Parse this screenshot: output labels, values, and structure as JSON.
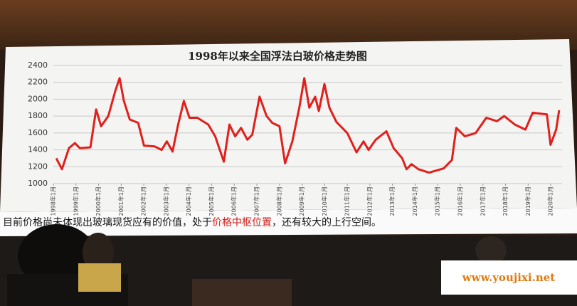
{
  "chart_data": {
    "type": "line",
    "title": "1998年以来全国浮法白玻价格走势图",
    "xlim": [
      1998,
      2020.5
    ],
    "xticks": [
      {
        "value": 1998,
        "label": "1998年1月"
      },
      {
        "value": 1999,
        "label": "1999年1月"
      },
      {
        "value": 2000,
        "label": "2000年1月"
      },
      {
        "value": 2001,
        "label": "2001年1月"
      },
      {
        "value": 2002,
        "label": "2002年1月"
      },
      {
        "value": 2003,
        "label": "2003年1月"
      },
      {
        "value": 2004,
        "label": "2004年1月"
      },
      {
        "value": 2005,
        "label": "2005年1月"
      },
      {
        "value": 2006,
        "label": "2006年1月"
      },
      {
        "value": 2007,
        "label": "2007年1月"
      },
      {
        "value": 2008,
        "label": "2008年1月"
      },
      {
        "value": 2009,
        "label": "2009年1月"
      },
      {
        "value": 2010,
        "label": "2010年1月"
      },
      {
        "value": 2011,
        "label": "2011年1月"
      },
      {
        "value": 2012,
        "label": "2012年1月"
      },
      {
        "value": 2013,
        "label": "2013年1月"
      },
      {
        "value": 2014,
        "label": "2014年1月"
      },
      {
        "value": 2015,
        "label": "2015年1月"
      },
      {
        "value": 2016,
        "label": "2016年1月"
      },
      {
        "value": 2017,
        "label": "2017年1月"
      },
      {
        "value": 2018,
        "label": "2018年1月"
      },
      {
        "value": 2019,
        "label": "2019年1月"
      },
      {
        "value": 2020,
        "label": "2020年1月"
      }
    ],
    "ylim": [
      1000,
      2400
    ],
    "yticks": [
      1000,
      1200,
      1400,
      1600,
      1800,
      2000,
      2200,
      2400
    ],
    "grid": true,
    "series": [
      {
        "color": "#e0201c",
        "x": [
          1998.13,
          1998.38,
          1998.69,
          1998.95,
          1999.17,
          1999.64,
          1999.89,
          2000.11,
          2000.43,
          2000.74,
          2000.93,
          2001.12,
          2001.38,
          2001.75,
          2002.01,
          2002.48,
          2002.79,
          2003.02,
          2003.27,
          2003.52,
          2003.77,
          2004.02,
          2004.37,
          2004.85,
          2005.16,
          2005.54,
          2005.79,
          2006.04,
          2006.3,
          2006.58,
          2006.8,
          2007.12,
          2007.43,
          2007.68,
          2008.0,
          2008.25,
          2008.57,
          2008.88,
          2009.1,
          2009.32,
          2009.58,
          2009.74,
          2009.99,
          2010.21,
          2010.52,
          2011.0,
          2011.41,
          2011.72,
          2011.94,
          2012.26,
          2012.73,
          2013.05,
          2013.43,
          2013.62,
          2013.84,
          2014.15,
          2014.62,
          2015.26,
          2015.63,
          2015.82,
          2016.2,
          2016.68,
          2017.15,
          2017.62,
          2017.94,
          2018.41,
          2018.88,
          2019.2,
          2019.83,
          2019.99,
          2020.24,
          2020.37
        ],
        "values": [
          1300,
          1170,
          1420,
          1480,
          1420,
          1430,
          1880,
          1680,
          1800,
          2100,
          2250,
          1980,
          1760,
          1720,
          1450,
          1440,
          1400,
          1500,
          1380,
          1700,
          1980,
          1780,
          1780,
          1700,
          1560,
          1260,
          1700,
          1560,
          1660,
          1520,
          1580,
          2030,
          1800,
          1720,
          1680,
          1240,
          1500,
          1900,
          2250,
          1900,
          2030,
          1860,
          2180,
          1900,
          1730,
          1600,
          1370,
          1500,
          1400,
          1520,
          1620,
          1420,
          1300,
          1170,
          1230,
          1170,
          1130,
          1180,
          1280,
          1660,
          1560,
          1600,
          1780,
          1740,
          1800,
          1700,
          1640,
          1840,
          1820,
          1460,
          1640,
          1870
        ]
      }
    ]
  },
  "caption": {
    "before": "目前价格尚未体现出玻璃现货应有的价值，处于",
    "highlight": "价格中枢位置",
    "after": "，还有较大的上行空间。"
  },
  "watermark": "www.youjixi.net"
}
